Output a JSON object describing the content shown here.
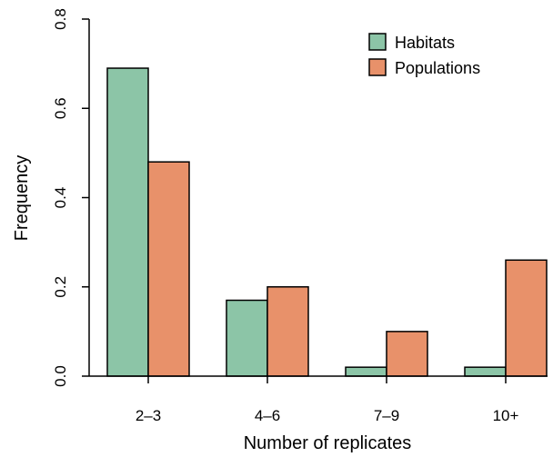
{
  "chart_data": {
    "type": "bar",
    "title": "",
    "xlabel": "Number of replicates",
    "ylabel": "Frequency",
    "categories": [
      "2–3",
      "4–6",
      "7–9",
      "10+"
    ],
    "series": [
      {
        "name": "Habitats",
        "values": [
          0.69,
          0.17,
          0.02,
          0.02
        ],
        "color": "#8cc5a7"
      },
      {
        "name": "Populations",
        "values": [
          0.48,
          0.2,
          0.1,
          0.26
        ],
        "color": "#e8916a"
      }
    ],
    "ylim": [
      0,
      0.8
    ],
    "yticks": [
      "0.0",
      "0.2",
      "0.4",
      "0.6",
      "0.8"
    ],
    "grid": false,
    "legend_position": "top-right"
  }
}
